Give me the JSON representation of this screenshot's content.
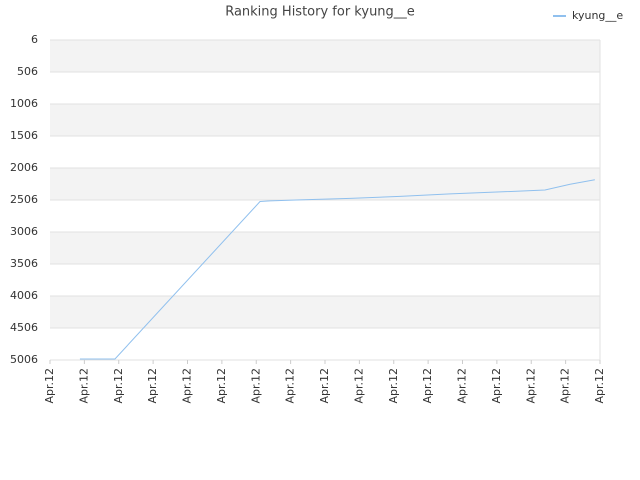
{
  "chart_data": {
    "type": "line",
    "title": "Ranking History for kyung__e",
    "x": [
      0.87,
      1.89,
      6.11,
      6.4,
      7.27,
      8.73,
      10.18,
      11.64,
      13.09,
      14.4,
      15.13,
      15.85
    ],
    "series": [
      {
        "name": "kyung__e",
        "color": "#90c0ee",
        "values": [
          4990,
          4990,
          2530,
          2520,
          2505,
          2480,
          2450,
          2410,
          2380,
          2350,
          2260,
          2190
        ]
      }
    ],
    "xlim": [
      0,
      16
    ],
    "xticks": [
      {
        "value": 0,
        "label": "Apr.12"
      },
      {
        "value": 1,
        "label": "Apr.12"
      },
      {
        "value": 2,
        "label": "Apr.12"
      },
      {
        "value": 3,
        "label": "Apr.12"
      },
      {
        "value": 4,
        "label": "Apr.12"
      },
      {
        "value": 5,
        "label": "Apr.12"
      },
      {
        "value": 6,
        "label": "Apr.12"
      },
      {
        "value": 7,
        "label": "Apr.12"
      },
      {
        "value": 8,
        "label": "Apr.12"
      },
      {
        "value": 9,
        "label": "Apr.12"
      },
      {
        "value": 10,
        "label": "Apr.12"
      },
      {
        "value": 11,
        "label": "Apr.12"
      },
      {
        "value": 12,
        "label": "Apr.12"
      },
      {
        "value": 13,
        "label": "Apr.12"
      },
      {
        "value": 14,
        "label": "Apr.12"
      },
      {
        "value": 15,
        "label": "Apr.12"
      },
      {
        "value": 16,
        "label": "Apr.12"
      }
    ],
    "ylim": [
      5006,
      6
    ],
    "y_inverted": true,
    "yticks": [
      6,
      506,
      1006,
      1506,
      2006,
      2506,
      3006,
      3506,
      4006,
      4506,
      5006
    ],
    "grid": true,
    "legend": "top-right"
  }
}
